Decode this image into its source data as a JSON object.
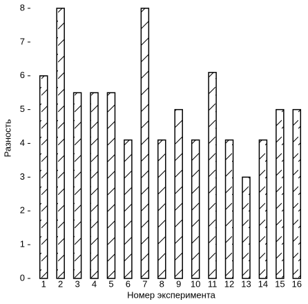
{
  "chart_data": {
    "type": "bar",
    "x_label": "Номер эксперимента",
    "y_label": "Разность",
    "categories": [
      "1",
      "2",
      "3",
      "4",
      "5",
      "6",
      "7",
      "8",
      "9",
      "10",
      "11",
      "12",
      "13",
      "14",
      "15",
      "16"
    ],
    "values": [
      6,
      8,
      5.5,
      5.5,
      5.5,
      4.1,
      8,
      4.1,
      5,
      4.1,
      6.1,
      4.1,
      3,
      4.1,
      5,
      5
    ],
    "color": "#000000",
    "ylim": [
      0,
      8
    ],
    "yticks": [
      0,
      1,
      2,
      3,
      4,
      5,
      6,
      7,
      8
    ]
  }
}
